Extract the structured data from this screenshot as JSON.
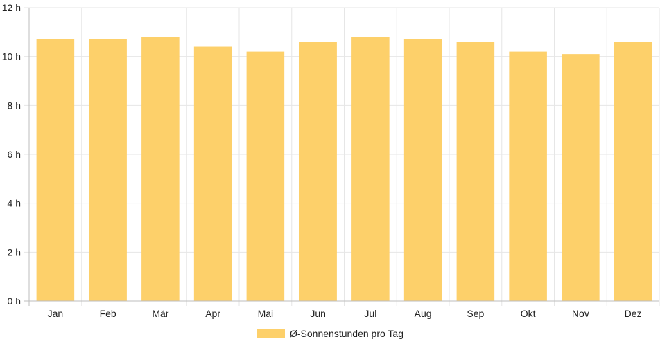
{
  "chart_data": {
    "type": "bar",
    "categories": [
      "Jan",
      "Feb",
      "Mär",
      "Apr",
      "Mai",
      "Jun",
      "Jul",
      "Aug",
      "Sep",
      "Okt",
      "Nov",
      "Dez"
    ],
    "series": [
      {
        "name": "Ø-Sonnenstunden pro Tag",
        "values": [
          10.7,
          10.7,
          10.8,
          10.4,
          10.2,
          10.6,
          10.8,
          10.7,
          10.6,
          10.2,
          10.1,
          10.6
        ]
      }
    ],
    "yticks": [
      "0 h",
      "2 h",
      "4 h",
      "6 h",
      "8 h",
      "10 h",
      "12 h"
    ],
    "ylim": [
      0,
      12
    ],
    "grid": true,
    "legend_position": "bottom",
    "colors": {
      "bar": "#fdd06a",
      "grid": "#e6e6e6",
      "axis": "#bdbdbd"
    }
  }
}
